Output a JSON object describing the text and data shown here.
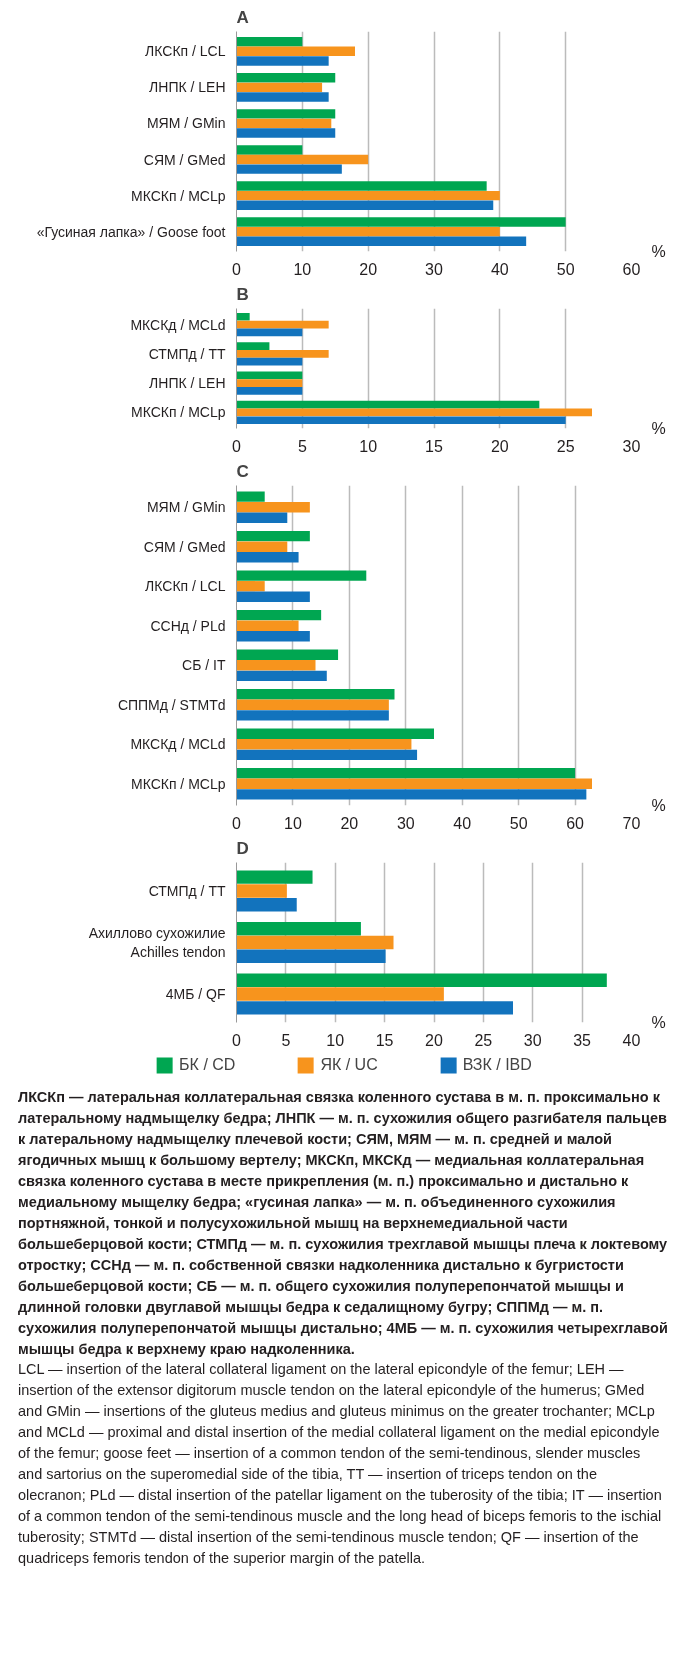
{
  "chart_data": [
    {
      "type": "bar",
      "orientation": "horizontal",
      "title": "A",
      "xlabel": "%",
      "categories": [
        "ЛКСКп / LCL",
        "ЛНПК / LEH",
        "МЯМ / GMin",
        "СЯМ / GMed",
        "МКСКп / MCLp",
        "«Гусиная лапка» / Goose foot"
      ],
      "series": [
        {
          "color": "#00a651",
          "values": [
            10,
            15,
            15,
            10,
            38,
            50
          ]
        },
        {
          "color": "#f7941d",
          "values": [
            18,
            13,
            14.4,
            20,
            40,
            40
          ]
        },
        {
          "color": "#1273bd",
          "values": [
            14,
            14,
            15,
            16,
            39,
            44
          ]
        }
      ],
      "xlim": [
        0,
        60
      ],
      "xticks": [
        0,
        10,
        20,
        30,
        40,
        50,
        60
      ],
      "grid": "x"
    },
    {
      "type": "bar",
      "orientation": "horizontal",
      "title": "B",
      "xlabel": "%",
      "categories": [
        "МКСКд / MCLd",
        "СТМПд / TT",
        "ЛНПК / LEH",
        "МКСКп / MCLp"
      ],
      "series": [
        {
          "color": "#00a651",
          "values": [
            1,
            2.5,
            5,
            23
          ]
        },
        {
          "color": "#f7941d",
          "values": [
            7,
            7,
            5,
            27
          ]
        },
        {
          "color": "#1273bd",
          "values": [
            5,
            5,
            5,
            25
          ]
        }
      ],
      "xlim": [
        0,
        30
      ],
      "xticks": [
        0,
        5,
        10,
        15,
        20,
        25,
        30
      ],
      "grid": "x"
    },
    {
      "type": "bar",
      "orientation": "horizontal",
      "title": "C",
      "xlabel": "%",
      "categories": [
        "МЯМ / GMin",
        "СЯМ / GMed",
        "ЛКСКп / LCL",
        "ССНд / PLd",
        "СБ / IT",
        "СППМд / STMTd",
        "МКСКд / MCLd",
        "МКСКп / MCLp"
      ],
      "series": [
        {
          "color": "#00a651",
          "values": [
            5,
            13,
            23,
            15,
            18,
            28,
            35,
            60
          ]
        },
        {
          "color": "#f7941d",
          "values": [
            13,
            9,
            5,
            11,
            14,
            27,
            31,
            63
          ]
        },
        {
          "color": "#1273bd",
          "values": [
            9,
            11,
            13,
            13,
            16,
            27,
            32,
            62
          ]
        }
      ],
      "xlim": [
        0,
        70
      ],
      "xticks": [
        0,
        10,
        20,
        30,
        40,
        50,
        60,
        70
      ],
      "grid": "x"
    },
    {
      "type": "bar",
      "orientation": "horizontal",
      "title": "D",
      "xlabel": "%",
      "categories": [
        "СТМПд / TT",
        "Ахиллово сухожилие\nAchilles tendon",
        "4МБ / QF"
      ],
      "series": [
        {
          "name": "БК / CD",
          "color": "#00a651",
          "values": [
            7.7,
            12.6,
            37.5
          ]
        },
        {
          "name": "ЯК / UC",
          "color": "#f7941d",
          "values": [
            5.1,
            15.9,
            21
          ]
        },
        {
          "name": "ВЗК / IBD",
          "color": "#1273bd",
          "values": [
            6.1,
            15.1,
            28
          ]
        }
      ],
      "xlim": [
        0,
        40
      ],
      "xticks": [
        0,
        5,
        10,
        15,
        20,
        25,
        30,
        35,
        40
      ],
      "grid": "x",
      "legend": "bottom",
      "annotations": [
        "ЛКСКп — латеральная коллатеральная связка коленного сустава в м. п. проксимально к латеральному надмыщелку бедра; ЛНПК — м. п. сухожилия общего разгибателя пальцев к латеральному надмыщелку плечевой кости; СЯМ, МЯМ — м. п. средней и малой ягодичных мышц к большому вертелу; МКСКп, МКСКд — медиальная коллатеральная связка коленного сустава в месте прикрепления (м. п.) проксимально и дистально к медиальному мыщелку бедра; «гусиная лапка» — м. п. объединенного сухожилия портняжной, тонкой и полусухожильной мышц на верхнемедиальной части большеберцовой кости; СТМПд — м. п. сухожилия трехглавой мышцы плеча к локтевому отростку; ССНд — м. п. собственной связки надколенника дистально к бугристости большеберцовой кости; СБ — м. п. общего сухожилия полуперепончатой мышцы и длинной головки двуглавой мышцы бедра к седалищному бугру; СППМд — м. п. сухожилия полуперепончатой мышцы дистально; 4МБ — м. п. сухожилия четырехглавой мышцы бедра к верхнему краю надколенника.",
        "LCL — insertion of the lateral collateral ligament on the lateral epicondyle of the femur; LEH — insertion of the extensor digitorum muscle tendon on the lateral epicondyle of the humerus; GMed and GMin — insertions of the gluteus medius and gluteus minimus on the greater trochanter; MCLp and MCLd — proximal and distal insertion of the medial collateral ligament on the medial epicondyle of the femur; goose feet — insertion of a common tendon of the semi-tendinous, slender muscles and sartorius on the superomedial side of the tibia, TT — insertion of triceps tendon on the olecranon; PLd — distal insertion of the patellar ligament on the tuberosity of the tibia; IT — insertion of a common tendon of the semi-tendinous muscle and the long head of biceps femoris to the ischial tuberosity; STMTd — distal insertion of the semi-tendinous muscle tendon; QF — insertion of the quadriceps femoris tendon of the superior margin of the patella."
      ]
    }
  ]
}
